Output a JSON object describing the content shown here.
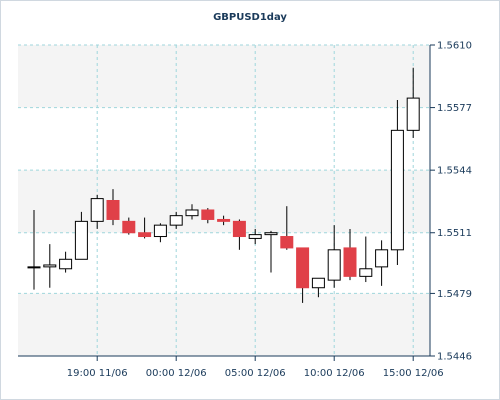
{
  "chart_data": {
    "type": "candlestick",
    "title": "GBPUSD1day",
    "xlabel": "",
    "ylabel": "",
    "ylim": [
      1.5446,
      1.561
    ],
    "yticks": [
      "1.5446",
      "1.5479",
      "1.5511",
      "1.5544",
      "1.5577",
      "1.5610"
    ],
    "xticks": [
      {
        "label": "19:00 11/06",
        "index": 4
      },
      {
        "label": "00:00 12/06",
        "index": 9
      },
      {
        "label": "05:00 12/06",
        "index": 14
      },
      {
        "label": "10:00 12/06",
        "index": 19
      },
      {
        "label": "15:00 12/06",
        "index": 24
      }
    ],
    "grid": true,
    "colors": {
      "up": "#ffffff",
      "down": "#e04048",
      "outline": "#000000",
      "grid": "#9fd6dc",
      "band": "#f4f4f4"
    },
    "candles": [
      {
        "o": 1.5493,
        "h": 1.5523,
        "l": 1.5481,
        "c": 1.5493
      },
      {
        "o": 1.5493,
        "h": 1.5505,
        "l": 1.5482,
        "c": 1.5494
      },
      {
        "o": 1.5492,
        "h": 1.5501,
        "l": 1.549,
        "c": 1.5497
      },
      {
        "o": 1.5497,
        "h": 1.5522,
        "l": 1.5497,
        "c": 1.5517
      },
      {
        "o": 1.5517,
        "h": 1.5531,
        "l": 1.5513,
        "c": 1.5529
      },
      {
        "o": 1.5528,
        "h": 1.5534,
        "l": 1.5515,
        "c": 1.5518
      },
      {
        "o": 1.5517,
        "h": 1.5519,
        "l": 1.551,
        "c": 1.5511
      },
      {
        "o": 1.5511,
        "h": 1.5519,
        "l": 1.5508,
        "c": 1.5509
      },
      {
        "o": 1.5509,
        "h": 1.5516,
        "l": 1.5506,
        "c": 1.5515
      },
      {
        "o": 1.5515,
        "h": 1.5522,
        "l": 1.5513,
        "c": 1.552
      },
      {
        "o": 1.552,
        "h": 1.5526,
        "l": 1.5518,
        "c": 1.5523
      },
      {
        "o": 1.5523,
        "h": 1.5524,
        "l": 1.5516,
        "c": 1.5518
      },
      {
        "o": 1.5518,
        "h": 1.552,
        "l": 1.5515,
        "c": 1.5517
      },
      {
        "o": 1.5517,
        "h": 1.5518,
        "l": 1.5502,
        "c": 1.5509
      },
      {
        "o": 1.5508,
        "h": 1.5513,
        "l": 1.5505,
        "c": 1.551
      },
      {
        "o": 1.551,
        "h": 1.5512,
        "l": 1.549,
        "c": 1.5511
      },
      {
        "o": 1.5509,
        "h": 1.5525,
        "l": 1.5502,
        "c": 1.5503
      },
      {
        "o": 1.5503,
        "h": 1.5503,
        "l": 1.5474,
        "c": 1.5482
      },
      {
        "o": 1.5482,
        "h": 1.5487,
        "l": 1.5477,
        "c": 1.5487
      },
      {
        "o": 1.5486,
        "h": 1.5515,
        "l": 1.5482,
        "c": 1.5502
      },
      {
        "o": 1.5503,
        "h": 1.5513,
        "l": 1.5486,
        "c": 1.5488
      },
      {
        "o": 1.5488,
        "h": 1.5509,
        "l": 1.5485,
        "c": 1.5492
      },
      {
        "o": 1.5493,
        "h": 1.5507,
        "l": 1.5483,
        "c": 1.5502
      },
      {
        "o": 1.5502,
        "h": 1.5581,
        "l": 1.5494,
        "c": 1.5565
      },
      {
        "o": 1.5565,
        "h": 1.5598,
        "l": 1.5561,
        "c": 1.5582
      }
    ]
  }
}
